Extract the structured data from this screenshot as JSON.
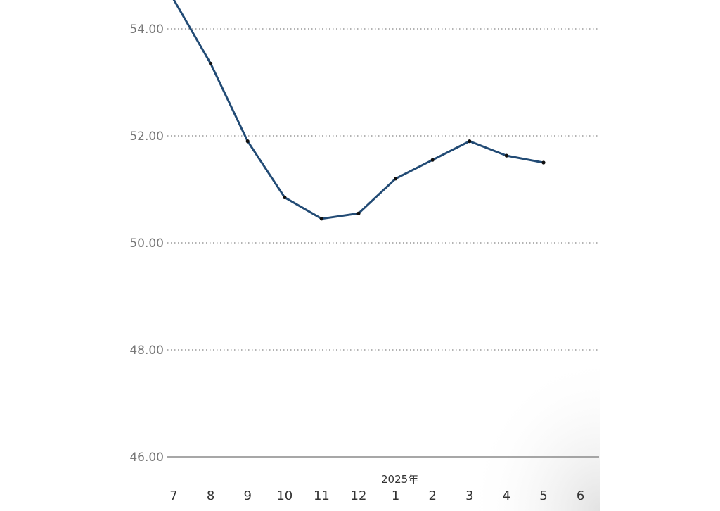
{
  "chart_data": {
    "type": "line",
    "title": "",
    "xlabel": "",
    "ylabel": "",
    "categories": [
      "7",
      "8",
      "9",
      "10",
      "11",
      "12",
      "1",
      "2",
      "3",
      "4",
      "5",
      "6"
    ],
    "year_label": "2025年",
    "year_label_category": "1",
    "y_ticks": [
      "46.00",
      "48.00",
      "50.00",
      "52.00",
      "54.00"
    ],
    "y_tick_values": [
      46,
      48,
      50,
      52,
      54
    ],
    "ylim": [
      46,
      54.55
    ],
    "series": [
      {
        "values": [
          54.55,
          53.35,
          51.9,
          50.85,
          50.45,
          50.55,
          51.2,
          51.55,
          51.9,
          51.63,
          51.5,
          null
        ],
        "color": "#224b75"
      }
    ],
    "grid": true,
    "grid_style": "dotted",
    "legend": "none"
  }
}
